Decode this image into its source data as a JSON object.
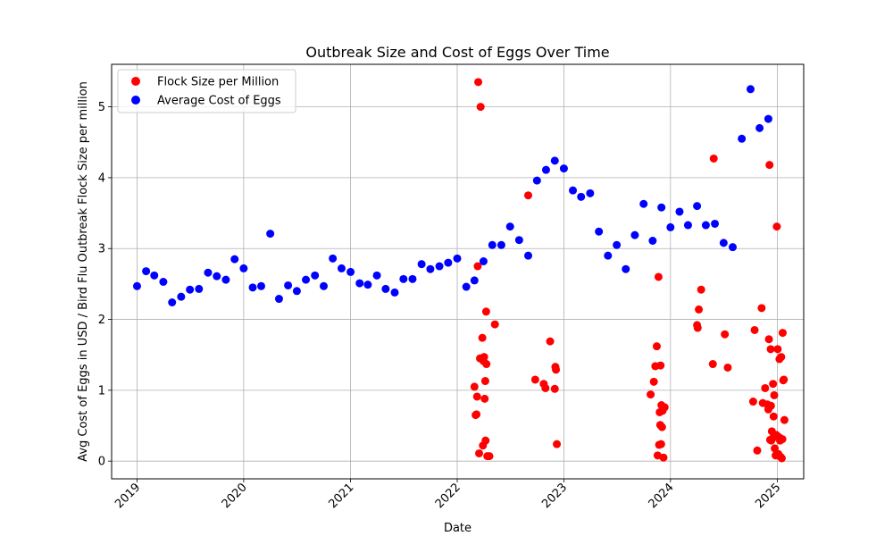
{
  "chart_data": {
    "type": "scatter",
    "title": "Outbreak Size and Cost of Eggs Over Time",
    "xlabel": "Date",
    "ylabel": "Avg Cost of Eggs in USD / Bird Flu Outbreak Flock Size per million",
    "xlim": [
      "2018-10-06",
      "2025-04-01"
    ],
    "ylim": [
      -0.25,
      5.6
    ],
    "x_ticks": [
      "2019",
      "2020",
      "2021",
      "2022",
      "2023",
      "2024",
      "2025"
    ],
    "y_ticks": [
      "0",
      "1",
      "2",
      "3",
      "4",
      "5"
    ],
    "grid": true,
    "legend_position": "top-left",
    "series": [
      {
        "name": "Flock Size per Million",
        "color": "#ff0000",
        "points": [
          [
            "2022-03-01",
            1.05
          ],
          [
            "2022-03-05",
            0.65
          ],
          [
            "2022-03-08",
            0.66
          ],
          [
            "2022-03-10",
            0.91
          ],
          [
            "2022-03-12",
            2.75
          ],
          [
            "2022-03-14",
            5.35
          ],
          [
            "2022-03-17",
            0.11
          ],
          [
            "2022-03-20",
            1.45
          ],
          [
            "2022-03-22",
            5.0
          ],
          [
            "2022-03-28",
            1.74
          ],
          [
            "2022-03-30",
            0.22
          ],
          [
            "2022-04-01",
            1.41
          ],
          [
            "2022-04-03",
            1.47
          ],
          [
            "2022-04-05",
            0.88
          ],
          [
            "2022-04-07",
            1.13
          ],
          [
            "2022-04-08",
            0.29
          ],
          [
            "2022-04-10",
            2.11
          ],
          [
            "2022-04-11",
            1.37
          ],
          [
            "2022-04-14",
            0.07
          ],
          [
            "2022-04-21",
            0.07
          ],
          [
            "2022-05-10",
            1.93
          ],
          [
            "2022-09-01",
            3.75
          ],
          [
            "2022-09-25",
            1.15
          ],
          [
            "2022-10-24",
            1.09
          ],
          [
            "2022-10-30",
            1.03
          ],
          [
            "2022-11-15",
            1.69
          ],
          [
            "2022-12-01",
            1.02
          ],
          [
            "2022-12-03",
            1.33
          ],
          [
            "2022-12-05",
            1.29
          ],
          [
            "2022-12-08",
            0.24
          ],
          [
            "2023-10-25",
            0.94
          ],
          [
            "2023-11-05",
            1.12
          ],
          [
            "2023-11-10",
            1.34
          ],
          [
            "2023-11-15",
            1.62
          ],
          [
            "2023-11-18",
            0.08
          ],
          [
            "2023-11-21",
            2.6
          ],
          [
            "2023-11-23",
            0.23
          ],
          [
            "2023-11-25",
            0.69
          ],
          [
            "2023-11-27",
            0.51
          ],
          [
            "2023-11-28",
            1.35
          ],
          [
            "2023-11-30",
            0.24
          ],
          [
            "2023-12-01",
            0.79
          ],
          [
            "2023-12-03",
            0.48
          ],
          [
            "2023-12-05",
            0.71
          ],
          [
            "2023-12-08",
            0.05
          ],
          [
            "2023-12-12",
            0.76
          ],
          [
            "2024-04-01",
            1.92
          ],
          [
            "2024-04-03",
            1.88
          ],
          [
            "2024-04-07",
            2.14
          ],
          [
            "2024-04-15",
            2.42
          ],
          [
            "2024-05-25",
            1.37
          ],
          [
            "2024-05-28",
            4.27
          ],
          [
            "2024-07-05",
            1.79
          ],
          [
            "2024-07-15",
            1.32
          ],
          [
            "2024-10-10",
            0.84
          ],
          [
            "2024-10-15",
            1.85
          ],
          [
            "2024-10-24",
            0.15
          ],
          [
            "2024-11-08",
            2.16
          ],
          [
            "2024-11-12",
            0.82
          ],
          [
            "2024-11-20",
            1.03
          ],
          [
            "2024-11-28",
            0.8
          ],
          [
            "2024-12-01",
            0.73
          ],
          [
            "2024-12-03",
            1.72
          ],
          [
            "2024-12-05",
            4.18
          ],
          [
            "2024-12-07",
            0.3
          ],
          [
            "2024-12-09",
            1.58
          ],
          [
            "2024-12-10",
            0.78
          ],
          [
            "2024-12-11",
            0.29
          ],
          [
            "2024-12-13",
            0.42
          ],
          [
            "2024-12-15",
            0.32
          ],
          [
            "2024-12-17",
            1.09
          ],
          [
            "2024-12-19",
            0.63
          ],
          [
            "2024-12-21",
            0.93
          ],
          [
            "2024-12-23",
            0.18
          ],
          [
            "2024-12-26",
            0.08
          ],
          [
            "2024-12-28",
            0.37
          ],
          [
            "2024-12-30",
            3.31
          ],
          [
            "2025-01-02",
            1.58
          ],
          [
            "2025-01-04",
            0.1
          ],
          [
            "2025-01-06",
            0.34
          ],
          [
            "2025-01-08",
            1.44
          ],
          [
            "2025-01-10",
            0.29
          ],
          [
            "2025-01-12",
            0.06
          ],
          [
            "2025-01-14",
            1.47
          ],
          [
            "2025-01-16",
            0.04
          ],
          [
            "2025-01-18",
            0.31
          ],
          [
            "2025-01-19",
            1.81
          ],
          [
            "2025-01-21",
            1.14
          ],
          [
            "2025-01-23",
            1.15
          ],
          [
            "2025-01-25",
            0.58
          ]
        ]
      },
      {
        "name": "Average Cost of Eggs",
        "color": "#0000ff",
        "points": [
          [
            "2019-01-01",
            2.47
          ],
          [
            "2019-02-01",
            2.68
          ],
          [
            "2019-03-01",
            2.62
          ],
          [
            "2019-04-01",
            2.53
          ],
          [
            "2019-05-01",
            2.24
          ],
          [
            "2019-06-01",
            2.32
          ],
          [
            "2019-07-01",
            2.42
          ],
          [
            "2019-08-01",
            2.43
          ],
          [
            "2019-09-01",
            2.66
          ],
          [
            "2019-10-01",
            2.61
          ],
          [
            "2019-11-01",
            2.56
          ],
          [
            "2019-12-01",
            2.85
          ],
          [
            "2020-01-01",
            2.72
          ],
          [
            "2020-02-01",
            2.45
          ],
          [
            "2020-03-01",
            2.47
          ],
          [
            "2020-04-01",
            3.21
          ],
          [
            "2020-05-01",
            2.29
          ],
          [
            "2020-06-01",
            2.48
          ],
          [
            "2020-07-01",
            2.4
          ],
          [
            "2020-08-01",
            2.56
          ],
          [
            "2020-09-01",
            2.62
          ],
          [
            "2020-10-01",
            2.47
          ],
          [
            "2020-11-01",
            2.86
          ],
          [
            "2020-12-01",
            2.72
          ],
          [
            "2021-01-01",
            2.67
          ],
          [
            "2021-02-01",
            2.51
          ],
          [
            "2021-03-01",
            2.49
          ],
          [
            "2021-04-01",
            2.62
          ],
          [
            "2021-05-01",
            2.43
          ],
          [
            "2021-06-01",
            2.38
          ],
          [
            "2021-07-01",
            2.57
          ],
          [
            "2021-08-01",
            2.57
          ],
          [
            "2021-09-01",
            2.78
          ],
          [
            "2021-10-01",
            2.71
          ],
          [
            "2021-11-01",
            2.75
          ],
          [
            "2021-12-01",
            2.8
          ],
          [
            "2022-01-01",
            2.86
          ],
          [
            "2022-02-01",
            2.46
          ],
          [
            "2022-03-01",
            2.55
          ],
          [
            "2022-04-01",
            2.82
          ],
          [
            "2022-05-01",
            3.05
          ],
          [
            "2022-06-01",
            3.05
          ],
          [
            "2022-07-01",
            3.31
          ],
          [
            "2022-08-01",
            3.12
          ],
          [
            "2022-09-01",
            2.9
          ],
          [
            "2022-10-01",
            3.96
          ],
          [
            "2022-11-01",
            4.11
          ],
          [
            "2022-12-01",
            4.24
          ],
          [
            "2023-01-01",
            4.13
          ],
          [
            "2023-02-01",
            3.82
          ],
          [
            "2023-03-01",
            3.73
          ],
          [
            "2023-04-01",
            3.78
          ],
          [
            "2023-05-01",
            3.24
          ],
          [
            "2023-06-01",
            2.9
          ],
          [
            "2023-07-01",
            3.05
          ],
          [
            "2023-08-01",
            2.71
          ],
          [
            "2023-09-01",
            3.19
          ],
          [
            "2023-10-01",
            3.63
          ],
          [
            "2023-11-01",
            3.11
          ],
          [
            "2023-12-01",
            3.58
          ],
          [
            "2024-01-01",
            3.3
          ],
          [
            "2024-02-01",
            3.52
          ],
          [
            "2024-03-01",
            3.33
          ],
          [
            "2024-04-01",
            3.6
          ],
          [
            "2024-05-01",
            3.33
          ],
          [
            "2024-06-01",
            3.35
          ],
          [
            "2024-07-01",
            3.08
          ],
          [
            "2024-08-01",
            3.02
          ],
          [
            "2024-09-01",
            4.55
          ],
          [
            "2024-10-01",
            5.25
          ],
          [
            "2024-11-01",
            4.7
          ],
          [
            "2024-12-01",
            4.83
          ]
        ]
      }
    ]
  }
}
